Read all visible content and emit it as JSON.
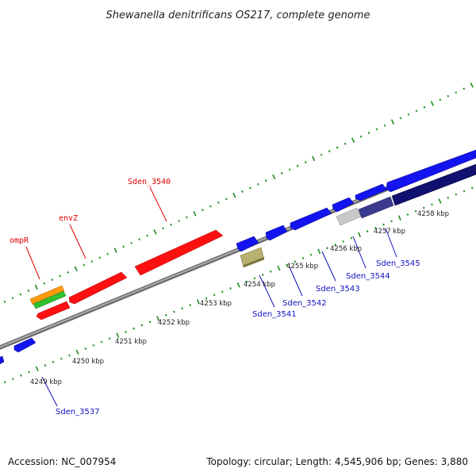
{
  "title": "Shewanella denitrificans OS217, complete genome",
  "footer": {
    "accession": "Accession: NC_007954",
    "topology": "Topology: circular; Length: 4,545,906 bp; Genes: 3,880"
  },
  "colors": {
    "backbone": "#8a8a8a",
    "tick": "#1f8a1f",
    "red_gene": "#ff1010",
    "blue_gene": "#1414f0",
    "navy_gene": "#101070",
    "slate_gene": "#3a3a90",
    "gray_gene": "#c8c8c8",
    "olive_gene": "#b8b070",
    "orange_gene": "#ff9a10",
    "green_gene": "#30c030",
    "top_label": "#e00000",
    "bottom_label": "#1010c0"
  },
  "kbp_labels": [
    "4249 kbp",
    "4250 kbp",
    "4251 kbp",
    "4252 kbp",
    "4253 kbp",
    "4254 kbp",
    "4255 kbp",
    "4256 kbp",
    "4257 kbp",
    "4258 kbp"
  ],
  "top_gene_labels": [
    "ompR",
    "envZ",
    "Sden_3540"
  ],
  "bottom_gene_labels": [
    "Sden_3537",
    "Sden_3541",
    "Sden_3542",
    "Sden_3543",
    "Sden_3544",
    "Sden_3545"
  ]
}
